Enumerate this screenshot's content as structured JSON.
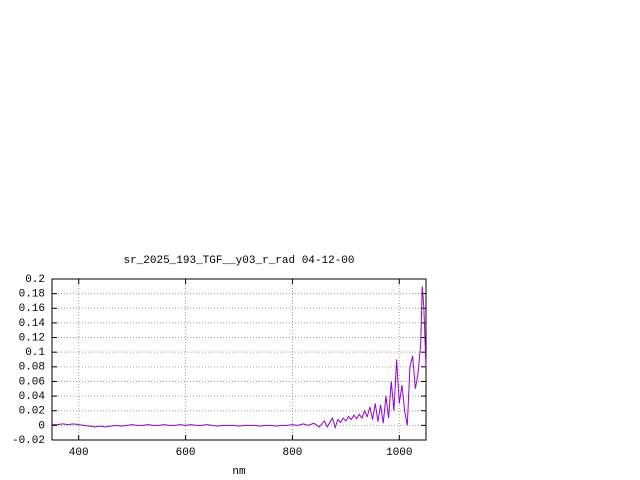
{
  "chart_data": {
    "type": "line",
    "title": "sr_2025_193_TGF__y03_r_rad 04-12-00",
    "xlabel": "nm",
    "x": [
      350,
      360,
      370,
      380,
      390,
      400,
      410,
      420,
      430,
      440,
      450,
      460,
      470,
      480,
      490,
      500,
      510,
      520,
      530,
      540,
      550,
      560,
      570,
      580,
      590,
      600,
      610,
      620,
      630,
      640,
      650,
      660,
      670,
      680,
      690,
      700,
      710,
      720,
      730,
      740,
      750,
      760,
      770,
      780,
      790,
      800,
      810,
      820,
      830,
      840,
      850,
      855,
      860,
      865,
      870,
      875,
      880,
      885,
      890,
      895,
      900,
      905,
      910,
      915,
      920,
      925,
      930,
      935,
      940,
      945,
      950,
      955,
      960,
      965,
      970,
      975,
      980,
      985,
      990,
      995,
      1000,
      1005,
      1010,
      1015,
      1020,
      1025,
      1030,
      1035,
      1040,
      1043,
      1046,
      1050
    ],
    "series": [
      {
        "color": "#9400d3",
        "values": [
          0.001,
          0.001,
          0.002,
          0.001,
          0.002,
          0.001,
          0,
          -0.001,
          -0.002,
          -0.001,
          -0.002,
          -0.001,
          0,
          -0.001,
          0,
          0.001,
          0,
          0,
          0.001,
          0,
          0,
          0.001,
          0,
          0,
          0.001,
          0,
          0.001,
          0,
          0,
          0.001,
          0,
          -0.001,
          0,
          0,
          0,
          -0.001,
          0,
          0,
          0,
          -0.001,
          0,
          0,
          -0.001,
          0,
          0,
          0.001,
          0,
          0.002,
          0,
          0.003,
          -0.002,
          0.002,
          0.006,
          -0.002,
          0.004,
          0.01,
          -0.003,
          0.008,
          0.004,
          0.01,
          0.006,
          0.012,
          0.008,
          0.014,
          0.009,
          0.015,
          0.01,
          0.02,
          0.012,
          0.025,
          0.008,
          0.03,
          0.005,
          0.028,
          0.003,
          0.04,
          0.01,
          0.06,
          0.02,
          0.09,
          0.03,
          0.055,
          0.02,
          0.0,
          0.08,
          0.095,
          0.05,
          0.07,
          0.11,
          0.19,
          0.16,
          0.08
        ]
      }
    ],
    "xlim": [
      350,
      1050
    ],
    "xticks": [
      400,
      600,
      800,
      1000
    ],
    "ylim": [
      -0.02,
      0.2
    ],
    "yticks": [
      -0.02,
      0,
      0.02,
      0.04,
      0.06,
      0.08,
      0.1,
      0.12,
      0.14,
      0.16,
      0.18,
      0.2
    ],
    "grid": true
  }
}
